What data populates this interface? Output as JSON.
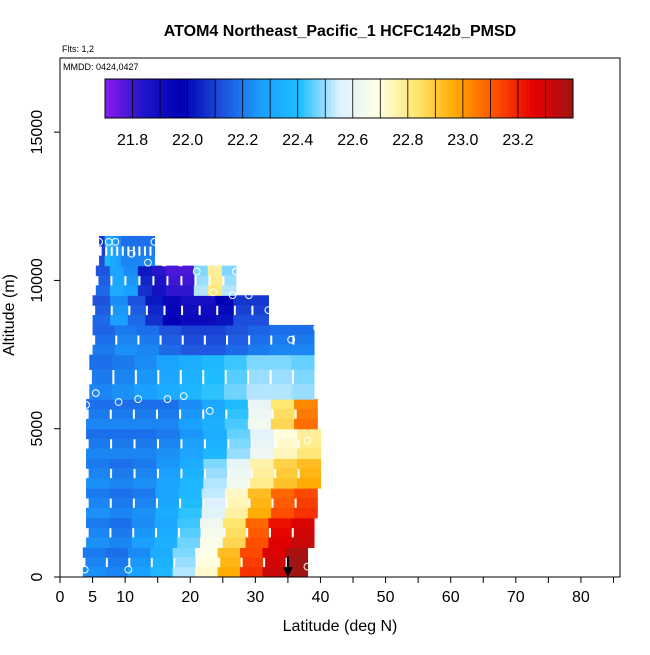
{
  "chart_data": {
    "type": "heatmap",
    "title": "ATOM4 Northeast_Pacific_1 HCFC142b_PMSD",
    "flights_note": "Flts: 1,2",
    "date_note": "MMDD: 0424,0427",
    "xlabel": "Latitude (deg N)",
    "ylabel": "Altitude (m)",
    "xlim": [
      0,
      86
    ],
    "ylim": [
      0,
      17500
    ],
    "x_ticks": [
      0,
      5,
      10,
      20,
      30,
      40,
      50,
      60,
      70,
      80
    ],
    "y_ticks": [
      0,
      5000,
      10000,
      15000
    ],
    "colorbar": {
      "range": [
        21.7,
        23.4
      ],
      "ticks": [
        "21.8",
        "22.0",
        "22.2",
        "22.4",
        "22.6",
        "22.8",
        "23.0",
        "23.2"
      ],
      "tick_values": [
        21.8,
        22.0,
        22.2,
        22.4,
        22.6,
        22.8,
        23.0,
        23.2
      ],
      "colors": [
        "#8a1cf0",
        "#1e14c8",
        "#0000b4",
        "#1e50dc",
        "#1aa0ff",
        "#1ebeff",
        "#dcf0ff",
        "#ffffe6",
        "#ffe66e",
        "#ffaa00",
        "#ff5000",
        "#e60000",
        "#a01414"
      ]
    },
    "columns": [
      {
        "alt": [
          0,
          1000
        ],
        "lat": [
          3.5,
          38
        ],
        "values": [
          22.22,
          22.2,
          22.25,
          22.35,
          22.5,
          22.7,
          22.95,
          23.15,
          23.3,
          23.4
        ]
      },
      {
        "alt": [
          1000,
          2000
        ],
        "lat": [
          4,
          39
        ],
        "values": [
          22.22,
          22.2,
          22.25,
          22.32,
          22.45,
          22.65,
          22.85,
          23.1,
          23.25,
          23.3
        ]
      },
      {
        "alt": [
          2000,
          3000
        ],
        "lat": [
          4,
          39.5
        ],
        "values": [
          22.22,
          22.2,
          22.22,
          22.3,
          22.4,
          22.55,
          22.75,
          22.95,
          23.1,
          23.15
        ]
      },
      {
        "alt": [
          3000,
          4000
        ],
        "lat": [
          4,
          40
        ],
        "values": [
          22.22,
          22.2,
          22.22,
          22.27,
          22.35,
          22.5,
          22.62,
          22.78,
          22.9,
          22.95
        ]
      },
      {
        "alt": [
          4000,
          5000
        ],
        "lat": [
          4,
          40
        ],
        "values": [
          22.2,
          22.2,
          22.2,
          22.22,
          22.27,
          22.35,
          22.48,
          22.6,
          22.72,
          22.8
        ]
      },
      {
        "alt": [
          5000,
          6000
        ],
        "lat": [
          4,
          39.5
        ],
        "values": [
          22.2,
          22.2,
          22.2,
          22.2,
          22.25,
          22.32,
          22.42,
          22.62,
          22.85,
          23.05
        ]
      },
      {
        "alt": [
          6000,
          7500
        ],
        "lat": [
          4.5,
          39
        ],
        "values": [
          22.2,
          22.22,
          22.25,
          22.3,
          22.35,
          22.4,
          22.45,
          22.5,
          22.5,
          22.48
        ]
      },
      {
        "alt": [
          7500,
          8500
        ],
        "lat": [
          5,
          39
        ],
        "values": [
          22.18,
          22.22,
          22.2,
          22.15,
          22.12,
          22.12,
          22.15,
          22.18,
          22.2,
          22.2
        ]
      },
      {
        "alt": [
          8500,
          9500
        ],
        "lat": [
          5,
          32
        ],
        "values": [
          22.15,
          22.25,
          22.15,
          22.05,
          21.95,
          21.9,
          21.9,
          22.0,
          22.1,
          22.1
        ]
      },
      {
        "alt": [
          9500,
          10500
        ],
        "lat": [
          5.5,
          27
        ],
        "values": [
          22.15,
          22.3,
          22.25,
          22.05,
          21.85,
          21.8,
          21.8,
          22.5,
          22.8,
          22.5
        ]
      },
      {
        "alt": [
          10500,
          11500
        ],
        "lat": [
          6,
          14.5
        ],
        "values": [
          22.1,
          22.35,
          22.3,
          22.25,
          22.2,
          22.2,
          22.2,
          22.2,
          22.2,
          22.2
        ]
      }
    ],
    "points": [
      {
        "lat": 6,
        "alt": 11300
      },
      {
        "lat": 7.5,
        "alt": 11300
      },
      {
        "lat": 8.5,
        "alt": 11300
      },
      {
        "lat": 14.5,
        "alt": 11300
      },
      {
        "lat": 11,
        "alt": 10900
      },
      {
        "lat": 13.5,
        "alt": 10600
      },
      {
        "lat": 16,
        "alt": 10600
      },
      {
        "lat": 18.5,
        "alt": 10600
      },
      {
        "lat": 21,
        "alt": 10300
      },
      {
        "lat": 27,
        "alt": 10300
      },
      {
        "lat": 23.5,
        "alt": 9600
      },
      {
        "lat": 26.5,
        "alt": 9500
      },
      {
        "lat": 29,
        "alt": 9500
      },
      {
        "lat": 32,
        "alt": 9000
      },
      {
        "lat": 35.5,
        "alt": 8000
      },
      {
        "lat": 39.5,
        "alt": 8400
      },
      {
        "lat": 5.5,
        "alt": 6200
      },
      {
        "lat": 4,
        "alt": 5800
      },
      {
        "lat": 9,
        "alt": 5900
      },
      {
        "lat": 12,
        "alt": 6000
      },
      {
        "lat": 16.5,
        "alt": 6000
      },
      {
        "lat": 19,
        "alt": 6100
      },
      {
        "lat": 23,
        "alt": 5600
      },
      {
        "lat": 38,
        "alt": 4600
      },
      {
        "lat": 3.8,
        "alt": 250
      },
      {
        "lat": 10.5,
        "alt": 250
      },
      {
        "lat": 38,
        "alt": 350
      }
    ],
    "marker": {
      "lat": 35,
      "alt_top": 700,
      "alt_bottom": 0
    }
  }
}
